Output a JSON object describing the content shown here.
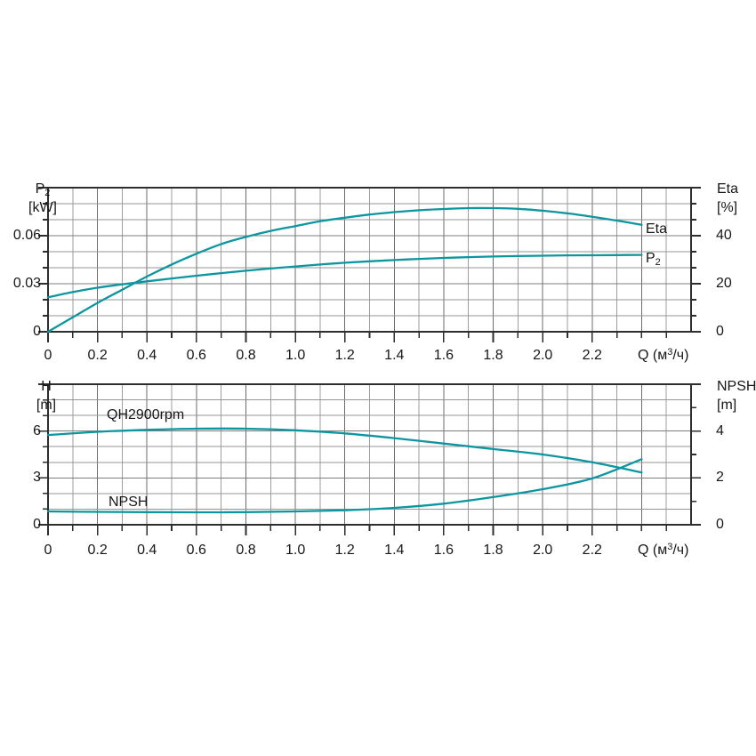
{
  "colors": {
    "curve": "#0d96a0",
    "grid_minor": "#9e9e9e",
    "grid_major_v": "#6d6d6d",
    "grid_h": "#949494",
    "grid_h_major": "#7d7d7d",
    "border": "#2e2e2e",
    "tick": "#2e2e2e",
    "text": "#171717",
    "background": "#ffffff"
  },
  "chart_data": [
    {
      "type": "line",
      "title": "",
      "legend_position": "inline-labels",
      "grid": true,
      "x_axis": {
        "label_prefix": "Q (м",
        "label_sup": "3",
        "label_suffix": "/ч)",
        "min": 0,
        "max": 2.6,
        "grid_step": 0.1,
        "tick_values": [
          0,
          0.2,
          0.4,
          0.6,
          0.8,
          1.0,
          1.2,
          1.4,
          1.6,
          1.8,
          2.0,
          2.2
        ],
        "tick_labels": [
          "0",
          "0.2",
          "0.4",
          "0.6",
          "0.8",
          "1.0",
          "1.2",
          "1.4",
          "1.6",
          "1.8",
          "2.0",
          "2.2"
        ]
      },
      "y_left": {
        "name": "P",
        "name_sub": "2",
        "unit": "[kW]",
        "min": 0,
        "max": 0.09,
        "grid_step": 0.01,
        "tick_values": [
          0,
          0.03,
          0.06
        ],
        "tick_labels": [
          "0",
          "0.03",
          "0.06"
        ]
      },
      "y_right": {
        "name": "Eta",
        "unit": "[%]",
        "min": 0,
        "max": 60,
        "tick_step": 6.667,
        "tick_values": [
          0,
          20,
          40
        ],
        "tick_labels": [
          "0",
          "20",
          "40"
        ]
      },
      "series": [
        {
          "name": "Eta",
          "axis": "right",
          "label": "Eta",
          "unit": "%",
          "x": [
            0,
            0.1,
            0.2,
            0.3,
            0.4,
            0.5,
            0.6,
            0.7,
            0.8,
            0.9,
            1.0,
            1.1,
            1.2,
            1.3,
            1.4,
            1.5,
            1.6,
            1.7,
            1.8,
            1.9,
            2.0,
            2.1,
            2.2,
            2.3,
            2.4
          ],
          "y": [
            0,
            6,
            12,
            17.5,
            23,
            28,
            32.5,
            36.5,
            39.5,
            42,
            44,
            46,
            47.5,
            48.8,
            49.8,
            50.6,
            51.1,
            51.5,
            51.5,
            51.2,
            50.4,
            49.3,
            47.9,
            46.3,
            44.5
          ]
        },
        {
          "name": "P2",
          "axis": "left",
          "label_main": "P",
          "label_sub": "2",
          "unit": "kW",
          "x": [
            0,
            0.1,
            0.2,
            0.3,
            0.4,
            0.5,
            0.6,
            0.7,
            0.8,
            0.9,
            1.0,
            1.1,
            1.2,
            1.3,
            1.4,
            1.5,
            1.6,
            1.7,
            1.8,
            1.9,
            2.0,
            2.1,
            2.2,
            2.3,
            2.4
          ],
          "y": [
            0.0215,
            0.0248,
            0.0275,
            0.0296,
            0.0315,
            0.0333,
            0.035,
            0.0366,
            0.0381,
            0.0395,
            0.0408,
            0.042,
            0.0431,
            0.044,
            0.0448,
            0.0455,
            0.0461,
            0.0466,
            0.047,
            0.0473,
            0.0475,
            0.0477,
            0.0478,
            0.0479,
            0.048
          ]
        }
      ]
    },
    {
      "type": "line",
      "title": "",
      "legend_position": "inline-labels",
      "grid": true,
      "x_axis": {
        "label_prefix": "Q (м",
        "label_sup": "3",
        "label_suffix": "/ч)",
        "min": 0,
        "max": 2.6,
        "grid_step": 0.1,
        "tick_values": [
          0,
          0.2,
          0.4,
          0.6,
          0.8,
          1.0,
          1.2,
          1.4,
          1.6,
          1.8,
          2.0,
          2.2
        ],
        "tick_labels": [
          "0",
          "0.2",
          "0.4",
          "0.6",
          "0.8",
          "1.0",
          "1.2",
          "1.4",
          "1.6",
          "1.8",
          "2.0",
          "2.2"
        ]
      },
      "y_left": {
        "name": "H",
        "name_sub": "",
        "unit": "[m]",
        "min": 0,
        "max": 9,
        "grid_step": 1,
        "tick_values": [
          0,
          3,
          6
        ],
        "tick_labels": [
          "0",
          "3",
          "6"
        ]
      },
      "y_right": {
        "name": "NPSH",
        "unit": "[m]",
        "min": 0,
        "max": 6,
        "tick_step": 1,
        "tick_values": [
          0,
          2,
          4
        ],
        "tick_labels": [
          "0",
          "2",
          "4"
        ]
      },
      "series": [
        {
          "name": "QH2900rpm",
          "axis": "left",
          "label": "QH2900rpm",
          "unit": "m",
          "x": [
            0,
            0.2,
            0.4,
            0.6,
            0.8,
            1.0,
            1.2,
            1.4,
            1.6,
            1.8,
            2.0,
            2.2,
            2.4
          ],
          "y": [
            5.75,
            5.95,
            6.08,
            6.15,
            6.15,
            6.05,
            5.85,
            5.55,
            5.2,
            4.85,
            4.5,
            4.0,
            3.35
          ]
        },
        {
          "name": "NPSH",
          "axis": "right",
          "label": "NPSH",
          "unit": "m",
          "x": [
            0,
            0.2,
            0.4,
            0.6,
            0.8,
            1.0,
            1.2,
            1.4,
            1.6,
            1.8,
            2.0,
            2.2,
            2.4
          ],
          "y": [
            0.57,
            0.55,
            0.54,
            0.53,
            0.54,
            0.57,
            0.62,
            0.72,
            0.9,
            1.18,
            1.52,
            1.98,
            2.8
          ]
        }
      ]
    }
  ]
}
